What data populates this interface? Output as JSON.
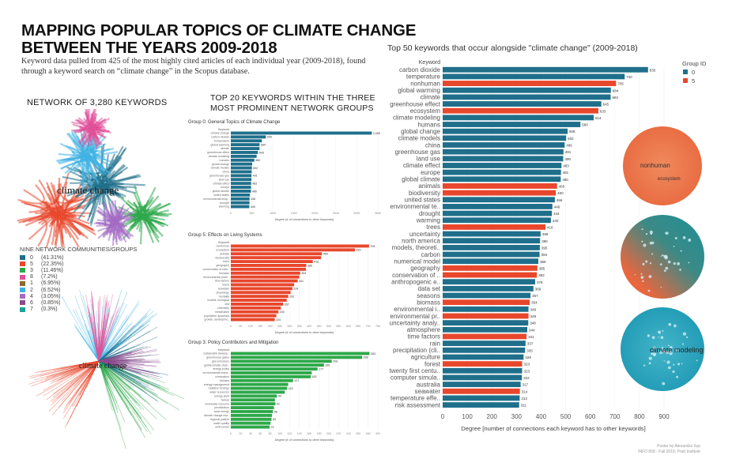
{
  "header": {
    "title_line1": "MAPPING POPULAR TOPICS OF CLIMATE CHANGE",
    "title_line2": "BETWEEN THE YEARS 2009-2018",
    "subtitle": "Keyword data pulled from 425 of the most highly cited articles of each individual year (2009-2018), found through a keyword search on “climate change” in the Scopus database."
  },
  "network": {
    "title": "NETWORK OF 3,280 KEYWORDS",
    "center_label": "climate change",
    "legend_title": "NINE NETWORK COMMUNITIES/GROUPS",
    "groups": [
      {
        "id": "0",
        "pct": "(41.31%)",
        "color": "#1f6f8b"
      },
      {
        "id": "5",
        "pct": "(22.35%)",
        "color": "#e8472c"
      },
      {
        "id": "3",
        "pct": "(11.46%)",
        "color": "#2ea84a"
      },
      {
        "id": "8",
        "pct": "(7.2%)",
        "color": "#e0509a"
      },
      {
        "id": "1",
        "pct": "(6.95%)",
        "color": "#8b6a2b"
      },
      {
        "id": "2",
        "pct": "(6.52%)",
        "color": "#3fb3e3"
      },
      {
        "id": "4",
        "pct": "(3.05%)",
        "color": "#a46cc4"
      },
      {
        "id": "6",
        "pct": "(0.85%)",
        "color": "#8e4a8e"
      },
      {
        "id": "7",
        "pct": "(0.3%)",
        "color": "#1aa39a"
      }
    ],
    "bottom_label": "climate change"
  },
  "mid": {
    "title_line1": "TOP 20 KEYWORDS WITHIN THE THREE",
    "title_line2": "MOST PROMINENT NETWORK GROUPS"
  },
  "circles": {
    "top_labels": [
      "nonhuman",
      "ecosystem"
    ],
    "bottom_label": "climate modeling"
  },
  "credit": {
    "line1": "Poster by Alexandra Szp",
    "line2": "INFO 658 - Fall 2018, Pratt Institute"
  },
  "chart_data": [
    {
      "type": "bar",
      "orientation": "horizontal",
      "title": "Group 0: General Topics of Climate Change",
      "ylabel": "Keyword",
      "xlabel": "Degree (# of connections to other keywords)",
      "xlim": [
        0,
        3500
      ],
      "xticks": [
        0,
        500,
        1000,
        1500,
        2000,
        2500,
        3000,
        3500
      ],
      "color": "#1f6f8b",
      "categories": [
        "climate change",
        "carbon dioxide",
        "temperature",
        "global warming",
        "climate",
        "greenhouse effect",
        "climate modeling",
        "humans",
        "global change",
        "climate models",
        "china",
        "greenhouse gas",
        "land use",
        "climate effect",
        "europe",
        "global climate",
        "united states",
        "environmental temp..",
        "drought",
        "warming"
      ],
      "values": [
        3355,
        835,
        740,
        684,
        683,
        645,
        614,
        560,
        508,
        502,
        496,
        491,
        490,
        483,
        481,
        480,
        456,
        446,
        444,
        440
      ],
      "data_labels": {
        "0": "3,355",
        "1": "835",
        "3": "684",
        "5": "645",
        "7": "560",
        "9": "502",
        "11": "491",
        "13": "483",
        "15": "480",
        "17": "446",
        "19": "440"
      }
    },
    {
      "type": "bar",
      "orientation": "horizontal",
      "title": "Group 5: Effects on Living Systems",
      "ylabel": "Keyword",
      "xlabel": "Degree (# of connections to other keywords)",
      "xlim": [
        0,
        750
      ],
      "xticks": [
        0,
        50,
        100,
        150,
        200,
        250,
        300,
        350,
        400,
        450,
        500,
        550,
        600,
        650,
        700,
        750
      ],
      "color": "#e8472c",
      "categories": [
        "nonhuman",
        "ecosystem",
        "animals",
        "biodiversity",
        "trees",
        "geography",
        "conservation of natu..",
        "biomass",
        "environmental prote..",
        "time factors",
        "forest",
        "seawater",
        "physiology",
        "mortality",
        "models, biological",
        "sea",
        "chemistry",
        "metabolism",
        "population dynamics",
        "growth, developme.."
      ],
      "values": [
        705,
        633,
        465,
        460,
        418,
        385,
        383,
        354,
        349,
        341,
        323,
        314,
        305,
        293,
        285,
        267,
        255,
        243,
        232,
        224
      ],
      "data_labels": {
        "0": "705",
        "1": "633",
        "2": "465",
        "4": "418",
        "5": "385",
        "7": "354",
        "9": "341",
        "11": "314",
        "13": "293",
        "15": "267",
        "17": "243",
        "19": "224"
      }
    },
    {
      "type": "bar",
      "orientation": "horizontal",
      "title": "Group 3: Policy Contributors and Mitigation",
      "ylabel": "Keyword",
      "xlabel": "Degree (# of connections to other keywords)",
      "xlim": [
        0,
        300
      ],
      "xticks": [
        0,
        20,
        40,
        60,
        80,
        100,
        120,
        140,
        160,
        180,
        200,
        220,
        240,
        260,
        280,
        300
      ],
      "color": "#2ea84a",
      "categories": [
        "sustainable develop..",
        "greenhouse gases",
        "gas emissions",
        "global climate chan..",
        "energy policy",
        "environmental mana..",
        "combustion",
        "biofuels",
        "energy management",
        "radiative forcings",
        "water resources",
        "energy yield",
        "biofuel",
        "renewable resource",
        "prioritization",
        "solar energy",
        "climate change mia..",
        "regional pattern",
        "water quality",
        "wind power"
      ],
      "values": [
        283,
        268,
        206,
        190,
        177,
        165,
        163,
        127,
        117,
        115,
        110,
        94,
        90,
        91,
        88,
        86,
        84,
        83,
        81,
        79
      ],
      "data_labels": {
        "0": "283",
        "1": "268",
        "2": "206",
        "3": "190",
        "4": "177",
        "6": "163",
        "7": "127",
        "9": "115",
        "11": "94",
        "13": "91",
        "15": "86",
        "17": "83",
        "19": "79"
      }
    },
    {
      "type": "bar",
      "orientation": "horizontal",
      "title": "Top 50 keywords that occur alongside \"climate change\" (2009-2018)",
      "ylabel": "Keyword",
      "xlabel": "Degree [number of connections each keyword has to other keywords]",
      "xlim": [
        0,
        900
      ],
      "xticks": [
        0,
        100,
        200,
        300,
        400,
        500,
        600,
        700,
        800,
        900
      ],
      "legend": {
        "title": "Group ID",
        "position": "top-right",
        "entries": [
          {
            "name": "0",
            "color": "#1f6f8b"
          },
          {
            "name": "5",
            "color": "#e8472c"
          }
        ]
      },
      "categories": [
        "carbon dioxide",
        "temperature",
        "nonhuman",
        "global warming",
        "climate",
        "greenhouse effect",
        "ecosystem",
        "climate modeling",
        "humans",
        "global change",
        "climate models",
        "china",
        "greenhouse gas",
        "land use",
        "climate effect",
        "europe",
        "global climate",
        "animals",
        "biodiversity",
        "united states",
        "environmental te..",
        "drought",
        "warming",
        "trees",
        "uncertainty",
        "north america",
        "models, theoreti..",
        "carbon",
        "numerical model",
        "geography",
        "conservation of ..",
        "anthropogenic e..",
        "data set",
        "seasons",
        "biomass",
        "environmental i..",
        "environmental pr..",
        "uncertainty analy..",
        "atmosphere",
        "time factors",
        "rain",
        "precipitation (cli..",
        "agriculture",
        "forest",
        "twenty first centu..",
        "computer simula..",
        "australia",
        "seawater",
        "temperature effe..",
        "risk assessment"
      ],
      "values": [
        835,
        740,
        705,
        684,
        683,
        645,
        633,
        614,
        560,
        508,
        502,
        496,
        491,
        490,
        483,
        481,
        480,
        465,
        460,
        456,
        446,
        444,
        440,
        418,
        398,
        396,
        395,
        394,
        389,
        385,
        383,
        376,
        369,
        357,
        354,
        349,
        349,
        348,
        344,
        341,
        337,
        335,
        329,
        323,
        323,
        322,
        317,
        314,
        313,
        311
      ],
      "groups": [
        "0",
        "0",
        "5",
        "0",
        "0",
        "0",
        "5",
        "0",
        "0",
        "0",
        "0",
        "0",
        "0",
        "0",
        "0",
        "0",
        "0",
        "5",
        "5",
        "0",
        "0",
        "0",
        "0",
        "5",
        "0",
        "0",
        "0",
        "0",
        "0",
        "5",
        "5",
        "0",
        "0",
        "0",
        "5",
        "0",
        "5",
        "0",
        "0",
        "5",
        "0",
        "0",
        "0",
        "5",
        "0",
        "0",
        "0",
        "5",
        "0",
        "0"
      ]
    }
  ]
}
